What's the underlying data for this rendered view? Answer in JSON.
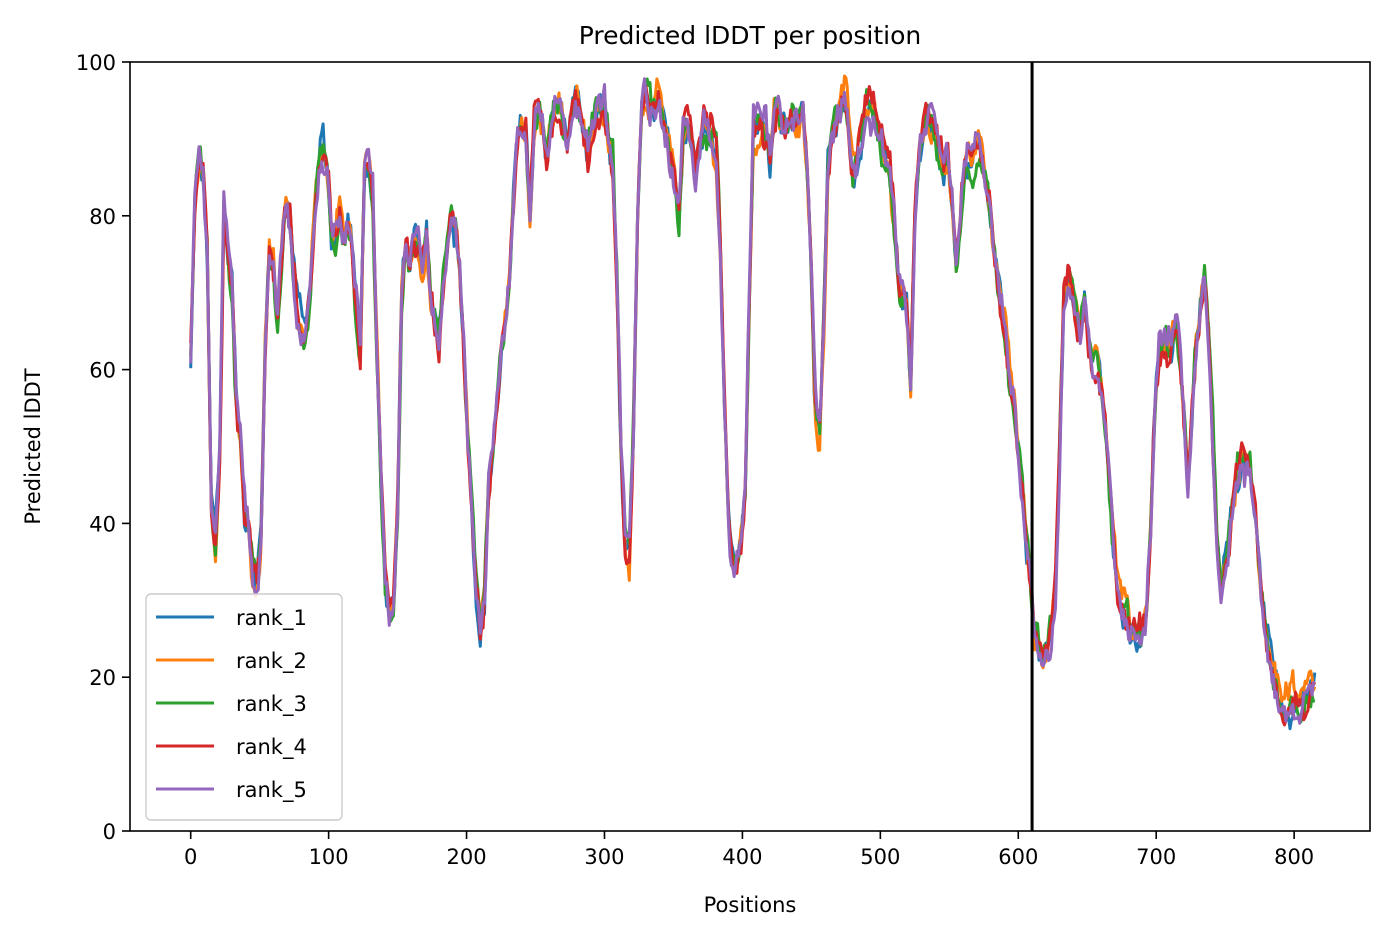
{
  "chart_data": {
    "type": "line",
    "title": "Predicted lDDT per position",
    "xlabel": "Positions",
    "ylabel": "Predicted lDDT",
    "xlim": [
      -44,
      855
    ],
    "ylim": [
      0,
      100
    ],
    "xticks": [
      0,
      100,
      200,
      300,
      400,
      500,
      600,
      700,
      800
    ],
    "yticks": [
      0,
      20,
      40,
      60,
      80,
      100
    ],
    "grid": false,
    "legend_position": "lower-left",
    "vertical_line": {
      "x": 610,
      "color": "#000000"
    },
    "x_range": [
      0,
      815
    ],
    "base_profile": [
      [
        0,
        62
      ],
      [
        3,
        82
      ],
      [
        6,
        88
      ],
      [
        9,
        86
      ],
      [
        12,
        76
      ],
      [
        15,
        42
      ],
      [
        18,
        37
      ],
      [
        21,
        48
      ],
      [
        24,
        81
      ],
      [
        27,
        74
      ],
      [
        30,
        70
      ],
      [
        33,
        55
      ],
      [
        36,
        50
      ],
      [
        39,
        41
      ],
      [
        42,
        39
      ],
      [
        45,
        33
      ],
      [
        48,
        31
      ],
      [
        51,
        37
      ],
      [
        54,
        62
      ],
      [
        57,
        75
      ],
      [
        60,
        73
      ],
      [
        63,
        67
      ],
      [
        66,
        75
      ],
      [
        69,
        83
      ],
      [
        72,
        80
      ],
      [
        75,
        73
      ],
      [
        78,
        66
      ],
      [
        81,
        65
      ],
      [
        84,
        66
      ],
      [
        87,
        72
      ],
      [
        90,
        82
      ],
      [
        93,
        88
      ],
      [
        96,
        89
      ],
      [
        99,
        86
      ],
      [
        102,
        78
      ],
      [
        105,
        77
      ],
      [
        108,
        80
      ],
      [
        111,
        77
      ],
      [
        114,
        78
      ],
      [
        117,
        75
      ],
      [
        120,
        68
      ],
      [
        123,
        62
      ],
      [
        126,
        86
      ],
      [
        129,
        87
      ],
      [
        132,
        82
      ],
      [
        135,
        62
      ],
      [
        138,
        45
      ],
      [
        141,
        33
      ],
      [
        144,
        29
      ],
      [
        147,
        30
      ],
      [
        150,
        42
      ],
      [
        153,
        70
      ],
      [
        156,
        77
      ],
      [
        159,
        74
      ],
      [
        162,
        78
      ],
      [
        165,
        77
      ],
      [
        168,
        74
      ],
      [
        171,
        78
      ],
      [
        174,
        70
      ],
      [
        177,
        67
      ],
      [
        180,
        64
      ],
      [
        183,
        72
      ],
      [
        186,
        75
      ],
      [
        189,
        79
      ],
      [
        192,
        78
      ],
      [
        195,
        73
      ],
      [
        198,
        62
      ],
      [
        201,
        50
      ],
      [
        204,
        42
      ],
      [
        207,
        32
      ],
      [
        210,
        27
      ],
      [
        213,
        31
      ],
      [
        216,
        46
      ],
      [
        219,
        50
      ],
      [
        222,
        56
      ],
      [
        225,
        62
      ],
      [
        228,
        67
      ],
      [
        231,
        72
      ],
      [
        234,
        82
      ],
      [
        237,
        91
      ],
      [
        240,
        92
      ],
      [
        243,
        92
      ],
      [
        246,
        80
      ],
      [
        249,
        92
      ],
      [
        252,
        95
      ],
      [
        255,
        93
      ],
      [
        258,
        88
      ],
      [
        261,
        92
      ],
      [
        264,
        94
      ],
      [
        267,
        95
      ],
      [
        270,
        93
      ],
      [
        273,
        90
      ],
      [
        276,
        93
      ],
      [
        279,
        95
      ],
      [
        282,
        93
      ],
      [
        285,
        90
      ],
      [
        288,
        88
      ],
      [
        291,
        90
      ],
      [
        294,
        93
      ],
      [
        297,
        94
      ],
      [
        300,
        94
      ],
      [
        303,
        90
      ],
      [
        306,
        87
      ],
      [
        309,
        72
      ],
      [
        312,
        50
      ],
      [
        315,
        38
      ],
      [
        318,
        36
      ],
      [
        321,
        52
      ],
      [
        324,
        80
      ],
      [
        327,
        94
      ],
      [
        330,
        96
      ],
      [
        333,
        94
      ],
      [
        336,
        94
      ],
      [
        339,
        95
      ],
      [
        342,
        93
      ],
      [
        345,
        90
      ],
      [
        348,
        87
      ],
      [
        351,
        85
      ],
      [
        354,
        80
      ],
      [
        357,
        90
      ],
      [
        360,
        92
      ],
      [
        363,
        90
      ],
      [
        366,
        86
      ],
      [
        369,
        89
      ],
      [
        372,
        93
      ],
      [
        375,
        92
      ],
      [
        378,
        90
      ],
      [
        381,
        88
      ],
      [
        384,
        75
      ],
      [
        387,
        55
      ],
      [
        390,
        40
      ],
      [
        393,
        35
      ],
      [
        396,
        35
      ],
      [
        399,
        38
      ],
      [
        402,
        45
      ],
      [
        405,
        70
      ],
      [
        408,
        92
      ],
      [
        411,
        91
      ],
      [
        414,
        92
      ],
      [
        417,
        91
      ],
      [
        420,
        86
      ],
      [
        423,
        92
      ],
      [
        426,
        93
      ],
      [
        429,
        91
      ],
      [
        432,
        92
      ],
      [
        435,
        93
      ],
      [
        438,
        92
      ],
      [
        441,
        93
      ],
      [
        444,
        94
      ],
      [
        447,
        86
      ],
      [
        450,
        72
      ],
      [
        453,
        54
      ],
      [
        456,
        51
      ],
      [
        459,
        66
      ],
      [
        462,
        85
      ],
      [
        465,
        90
      ],
      [
        468,
        92
      ],
      [
        471,
        94
      ],
      [
        474,
        96
      ],
      [
        477,
        92
      ],
      [
        480,
        85
      ],
      [
        483,
        87
      ],
      [
        486,
        91
      ],
      [
        489,
        94
      ],
      [
        492,
        95
      ],
      [
        495,
        94
      ],
      [
        498,
        92
      ],
      [
        501,
        90
      ],
      [
        504,
        87
      ],
      [
        507,
        86
      ],
      [
        510,
        80
      ],
      [
        513,
        72
      ],
      [
        516,
        69
      ],
      [
        519,
        68
      ],
      [
        522,
        58
      ],
      [
        525,
        80
      ],
      [
        528,
        88
      ],
      [
        531,
        91
      ],
      [
        534,
        93
      ],
      [
        537,
        92
      ],
      [
        540,
        90
      ],
      [
        543,
        88
      ],
      [
        546,
        86
      ],
      [
        549,
        87
      ],
      [
        552,
        82
      ],
      [
        555,
        74
      ],
      [
        558,
        80
      ],
      [
        561,
        86
      ],
      [
        564,
        88
      ],
      [
        567,
        87
      ],
      [
        570,
        89
      ],
      [
        573,
        88
      ],
      [
        576,
        85
      ],
      [
        579,
        82
      ],
      [
        582,
        76
      ],
      [
        585,
        72
      ],
      [
        588,
        68
      ],
      [
        591,
        65
      ],
      [
        594,
        60
      ],
      [
        597,
        56
      ],
      [
        600,
        50
      ],
      [
        603,
        45
      ],
      [
        606,
        37
      ],
      [
        609,
        32
      ],
      [
        612,
        25
      ],
      [
        615,
        24
      ],
      [
        618,
        22
      ],
      [
        621,
        23
      ],
      [
        624,
        26
      ],
      [
        627,
        32
      ],
      [
        630,
        50
      ],
      [
        633,
        70
      ],
      [
        636,
        72
      ],
      [
        639,
        71
      ],
      [
        642,
        68
      ],
      [
        645,
        65
      ],
      [
        648,
        69
      ],
      [
        651,
        64
      ],
      [
        654,
        60
      ],
      [
        657,
        61
      ],
      [
        660,
        59
      ],
      [
        663,
        54
      ],
      [
        666,
        46
      ],
      [
        669,
        38
      ],
      [
        672,
        32
      ],
      [
        675,
        30
      ],
      [
        678,
        29
      ],
      [
        681,
        27
      ],
      [
        684,
        26
      ],
      [
        687,
        25
      ],
      [
        690,
        26
      ],
      [
        693,
        28
      ],
      [
        696,
        40
      ],
      [
        699,
        55
      ],
      [
        702,
        62
      ],
      [
        705,
        64
      ],
      [
        708,
        63
      ],
      [
        711,
        64
      ],
      [
        714,
        66
      ],
      [
        717,
        63
      ],
      [
        720,
        55
      ],
      [
        723,
        45
      ],
      [
        726,
        55
      ],
      [
        729,
        64
      ],
      [
        732,
        68
      ],
      [
        735,
        72
      ],
      [
        738,
        65
      ],
      [
        741,
        52
      ],
      [
        744,
        38
      ],
      [
        747,
        32
      ],
      [
        750,
        34
      ],
      [
        753,
        38
      ],
      [
        756,
        43
      ],
      [
        759,
        46
      ],
      [
        762,
        49
      ],
      [
        765,
        48
      ],
      [
        768,
        47
      ],
      [
        771,
        42
      ],
      [
        774,
        36
      ],
      [
        777,
        30
      ],
      [
        780,
        25
      ],
      [
        783,
        22
      ],
      [
        786,
        19
      ],
      [
        789,
        17
      ],
      [
        792,
        16
      ],
      [
        795,
        16
      ],
      [
        798,
        17
      ],
      [
        801,
        17
      ],
      [
        804,
        16
      ],
      [
        807,
        17
      ],
      [
        810,
        18
      ],
      [
        813,
        18
      ],
      [
        815,
        19
      ]
    ],
    "series": [
      {
        "name": "rank_1",
        "color": "#1f77b4"
      },
      {
        "name": "rank_2",
        "color": "#ff7f0e"
      },
      {
        "name": "rank_3",
        "color": "#2ca02c"
      },
      {
        "name": "rank_4",
        "color": "#d62728"
      },
      {
        "name": "rank_5",
        "color": "#9467bd"
      }
    ]
  }
}
